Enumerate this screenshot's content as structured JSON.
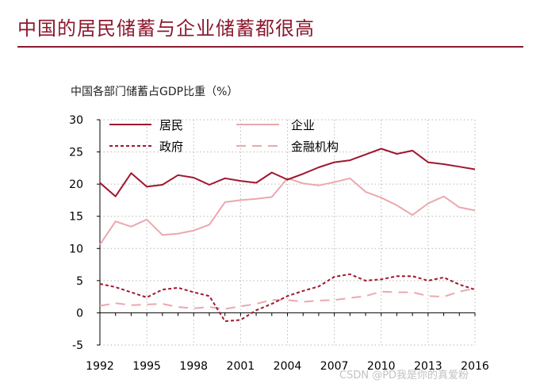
{
  "page": {
    "title": "中国的居民储蓄与企业储蓄都很高",
    "watermark": "CSDN @PD我是你的真爱粉"
  },
  "colors": {
    "title": "#8B1A2E",
    "residents": "#A0162E",
    "enterprise": "#EAA8AE",
    "government": "#A0162E",
    "financial": "#EAA8AE",
    "grid": "#B8B8B8",
    "axis": "#000000"
  },
  "chart_data": {
    "type": "line",
    "title": "中国各部门储蓄占GDP比重（%）",
    "xlabel": "",
    "ylabel": "",
    "xlim": [
      1992,
      2016
    ],
    "ylim": [
      -5,
      30
    ],
    "yticks": [
      30,
      25,
      20,
      15,
      10,
      5,
      0,
      -5
    ],
    "ytick_labels": [
      "30",
      "25",
      "20",
      "15",
      "10",
      "5",
      "0",
      "-5"
    ],
    "xticks": [
      1992,
      1995,
      1998,
      2001,
      2004,
      2007,
      2010,
      2013,
      2016
    ],
    "xtick_labels": [
      "1992",
      "1995",
      "1998",
      "2001",
      "2004",
      "2007",
      "2010",
      "2013",
      "2016"
    ],
    "grid": true,
    "legend_position": "top",
    "x": [
      1992,
      1993,
      1994,
      1995,
      1996,
      1997,
      1998,
      1999,
      2000,
      2001,
      2002,
      2003,
      2004,
      2005,
      2006,
      2007,
      2008,
      2009,
      2010,
      2011,
      2012,
      2013,
      2014,
      2015,
      2016
    ],
    "series": [
      {
        "name": "居民",
        "style": "solid",
        "color": "#A0162E",
        "values": [
          20.2,
          18.1,
          21.7,
          19.6,
          19.9,
          21.4,
          21.0,
          19.9,
          20.9,
          20.5,
          20.2,
          21.8,
          20.7,
          21.6,
          22.6,
          23.4,
          23.7,
          24.6,
          25.5,
          24.7,
          25.2,
          23.4,
          23.1,
          22.7,
          22.3
        ]
      },
      {
        "name": "企业",
        "style": "solid",
        "color": "#EAA8AE",
        "values": [
          10.6,
          14.2,
          13.4,
          14.5,
          12.1,
          12.3,
          12.8,
          13.7,
          17.2,
          17.5,
          17.7,
          18.0,
          20.9,
          20.1,
          19.8,
          20.3,
          20.9,
          18.8,
          17.9,
          16.7,
          15.2,
          17.0,
          18.1,
          16.4,
          15.9
        ]
      },
      {
        "name": "政府",
        "style": "dotted",
        "color": "#A0162E",
        "values": [
          4.5,
          4.0,
          3.2,
          2.4,
          3.6,
          3.9,
          3.2,
          2.6,
          -1.3,
          -1.1,
          0.4,
          1.4,
          2.6,
          3.4,
          4.1,
          5.6,
          6.0,
          5.0,
          5.2,
          5.7,
          5.7,
          5.0,
          5.5,
          4.4,
          3.6
        ]
      },
      {
        "name": "金融机构",
        "style": "dashed",
        "color": "#EAA8AE",
        "values": [
          1.1,
          1.5,
          1.2,
          1.3,
          1.4,
          0.9,
          0.7,
          0.9,
          0.6,
          1.0,
          1.4,
          2.0,
          2.0,
          1.7,
          1.9,
          2.0,
          2.3,
          2.6,
          3.3,
          3.2,
          3.2,
          2.6,
          2.5,
          3.3,
          3.8
        ]
      }
    ]
  }
}
